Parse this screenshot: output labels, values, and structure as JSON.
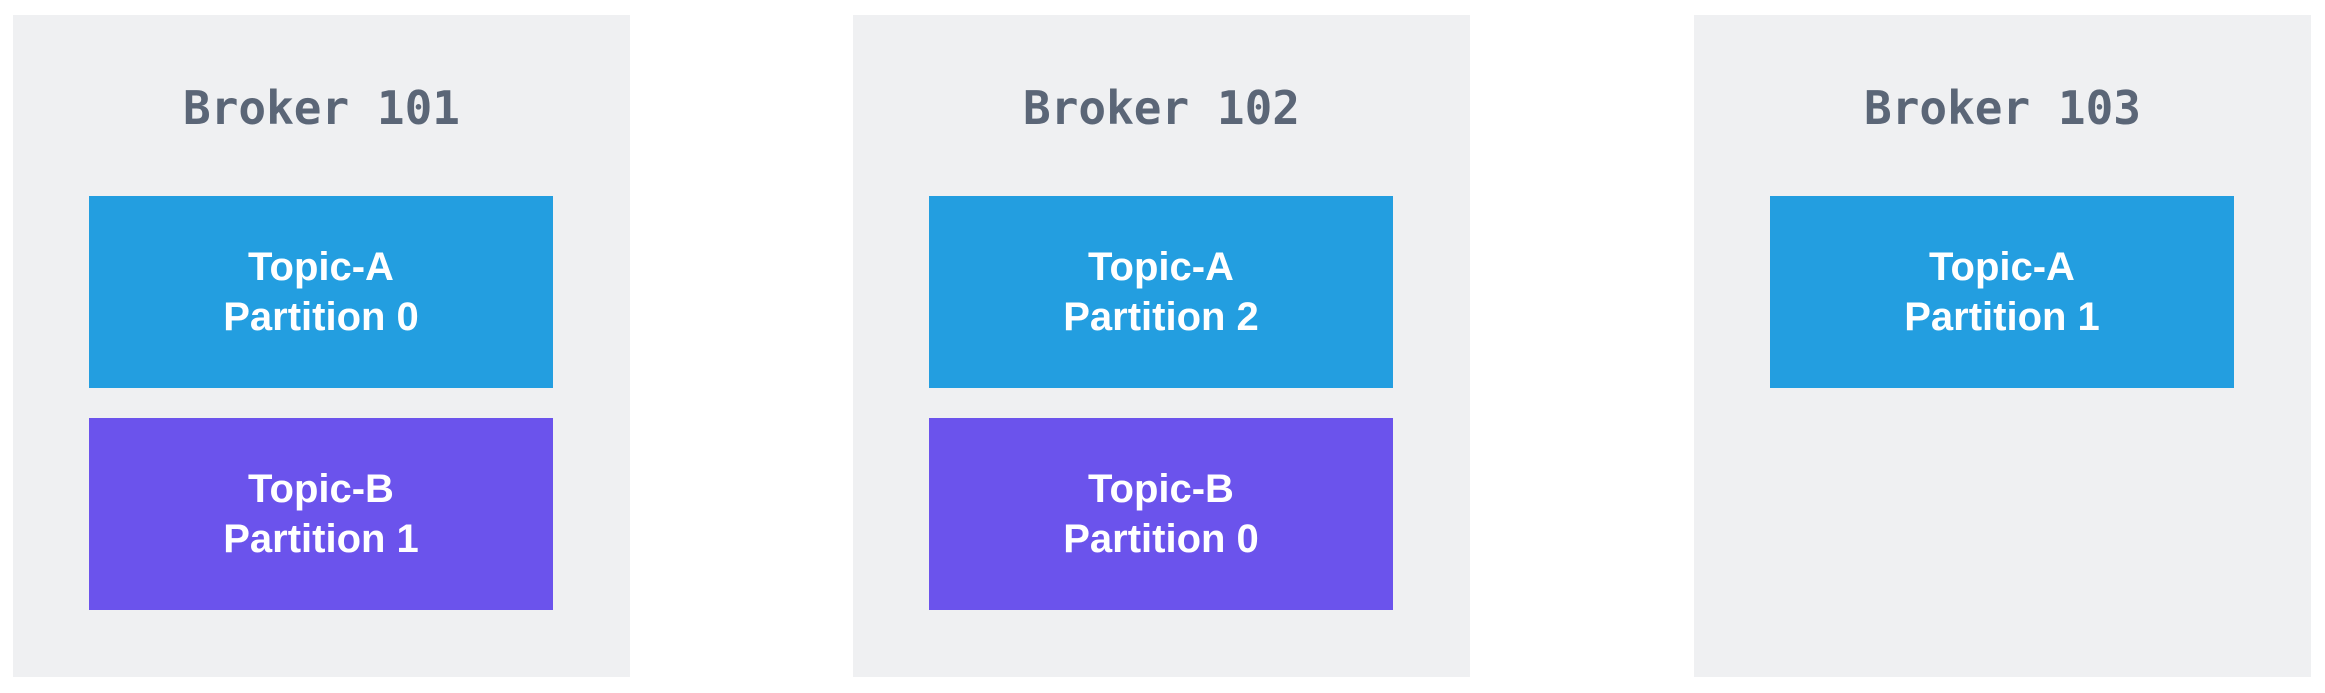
{
  "colors": {
    "broker_background": "#eff0f2",
    "broker_title": "#5b6677",
    "topic_a": "#239ee0",
    "topic_b": "#6b53ec",
    "partition_text": "#ffffff"
  },
  "brokers": [
    {
      "title": "Broker 101",
      "partitions": [
        {
          "topic": "Topic-A",
          "partition": "Partition 0",
          "color": "#239ee0"
        },
        {
          "topic": "Topic-B",
          "partition": "Partition 1",
          "color": "#6b53ec"
        }
      ]
    },
    {
      "title": "Broker 102",
      "partitions": [
        {
          "topic": "Topic-A",
          "partition": "Partition 2",
          "color": "#239ee0"
        },
        {
          "topic": "Topic-B",
          "partition": "Partition 0",
          "color": "#6b53ec"
        }
      ]
    },
    {
      "title": "Broker 103",
      "partitions": [
        {
          "topic": "Topic-A",
          "partition": "Partition 1",
          "color": "#239ee0"
        }
      ]
    }
  ]
}
